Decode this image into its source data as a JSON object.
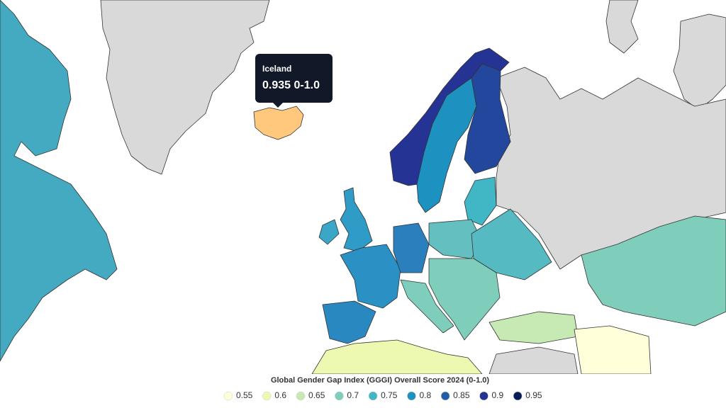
{
  "map": {
    "tooltip": {
      "country": "Iceland",
      "value": 0.935,
      "unit": "0-1.0"
    },
    "legend": {
      "title": "Global Gender Gap Index (GGGI) Overall Score 2024 (0-1.0)",
      "items": [
        {
          "value": 0.55,
          "color": "#ffffd9"
        },
        {
          "value": 0.6,
          "color": "#edf8b1"
        },
        {
          "value": 0.65,
          "color": "#c7e9b4"
        },
        {
          "value": 0.7,
          "color": "#7fcdbb"
        },
        {
          "value": 0.75,
          "color": "#41b6c4"
        },
        {
          "value": 0.8,
          "color": "#1d91c0"
        },
        {
          "value": 0.85,
          "color": "#225ea8"
        },
        {
          "value": 0.9,
          "color": "#253494"
        },
        {
          "value": 0.95,
          "color": "#081d58"
        }
      ]
    }
  }
}
